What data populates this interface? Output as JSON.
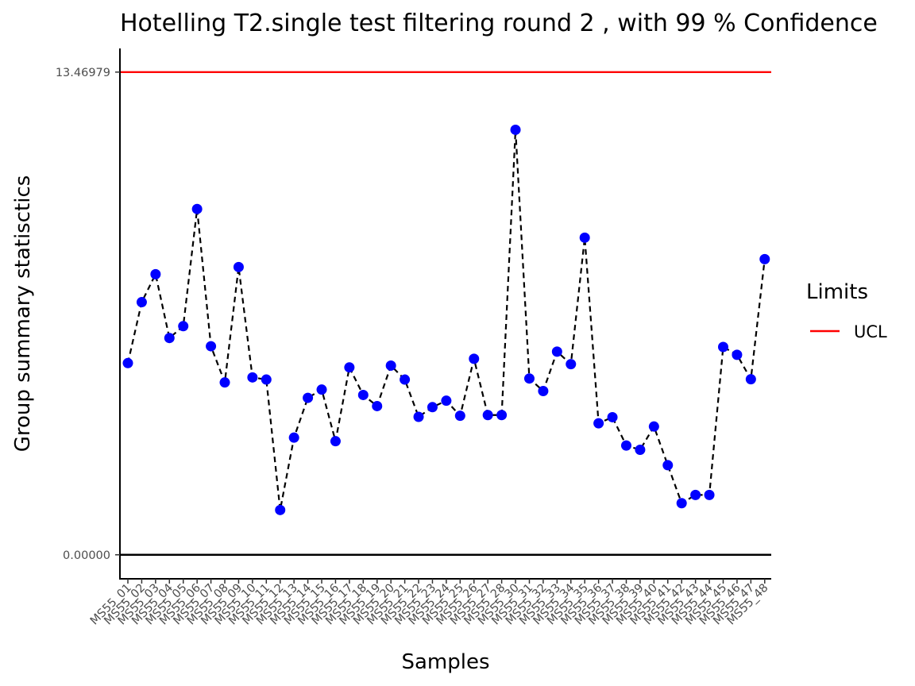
{
  "chart_data": {
    "type": "line",
    "title": "Hotelling  T2.single  test filtering round  2 , with  99 % Confidence",
    "xlabel": "Samples",
    "ylabel": "Group summary statisctics",
    "categories": [
      "MS55_01",
      "MS55_02",
      "MS55_03",
      "MS55_04",
      "MS55_05",
      "MS55_06",
      "MS55_07",
      "MS55_08",
      "MS55_09",
      "MS55_10",
      "MS55_11",
      "MS55_12",
      "MS55_13",
      "MS55_14",
      "MS55_15",
      "MS55_16",
      "MS55_17",
      "MS55_18",
      "MS55_19",
      "MS55_20",
      "MS55_21",
      "MS55_22",
      "MS55_23",
      "MS55_24",
      "MS55_25",
      "MS55_26",
      "MS55_27",
      "MS55_28",
      "MS55_30",
      "MS55_31",
      "MS55_32",
      "MS55_33",
      "MS55_34",
      "MS55_35",
      "MS55_36",
      "MS55_37",
      "MS55_38",
      "MS55_39",
      "MS55_40",
      "MS55_41",
      "MS55_42",
      "MS55_43",
      "MS55_44",
      "MS55_45",
      "MS55_46",
      "MS55_47",
      "MS55_48"
    ],
    "series": [
      {
        "values": [
          5.35,
          7.05,
          7.83,
          6.05,
          6.38,
          9.65,
          5.82,
          4.81,
          8.03,
          4.95,
          4.89,
          1.25,
          3.27,
          4.38,
          4.61,
          3.17,
          5.23,
          4.46,
          4.15,
          5.28,
          4.89,
          3.85,
          4.12,
          4.3,
          3.88,
          5.47,
          3.9,
          3.9,
          11.86,
          4.92,
          4.57,
          5.67,
          5.32,
          8.85,
          3.67,
          3.84,
          3.05,
          2.93,
          3.58,
          2.5,
          1.44,
          1.67,
          1.67,
          5.8,
          5.58,
          4.9,
          8.25
        ],
        "color": "#0000ff",
        "line_color": "#000000",
        "line_style": "dashed"
      }
    ],
    "ylim": [
      -0.67,
      14.13
    ],
    "yticks": [
      0.0,
      13.46979
    ],
    "ytick_labels": [
      "0.00000",
      "13.46979"
    ],
    "hlines": [
      {
        "name": "UCL",
        "value": 13.46979,
        "color": "#ff0000"
      },
      {
        "value": 0.0,
        "color": "#000000"
      }
    ],
    "legend": {
      "title": "Limits",
      "items": [
        {
          "label": "UCL",
          "color": "#ff0000"
        }
      ],
      "position": "right"
    },
    "grid": false
  }
}
